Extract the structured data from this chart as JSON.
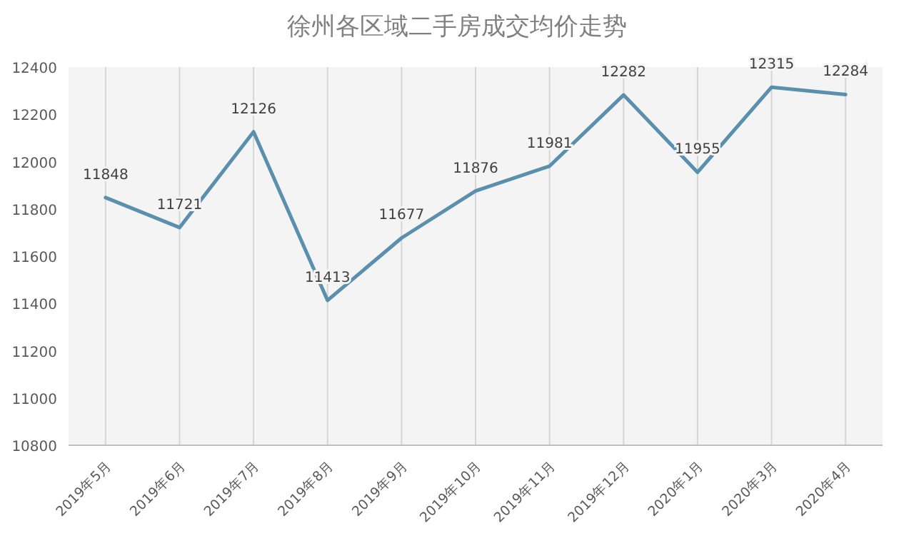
{
  "chart_data": {
    "type": "line",
    "title": "徐州各区域二手房成交均价走势",
    "categories": [
      "2019年5月",
      "2019年6月",
      "2019年7月",
      "2019年8月",
      "2019年9月",
      "2019年10月",
      "2019年11月",
      "2019年12月",
      "2020年1月",
      "2020年3月",
      "2020年4月"
    ],
    "series": [
      {
        "color": "#5b8fae",
        "values": [
          11848,
          11721,
          12126,
          11413,
          11677,
          11876,
          11981,
          12282,
          11955,
          12315,
          12284
        ]
      }
    ],
    "ylim": [
      10800,
      12400
    ],
    "yticks": [
      10800,
      11000,
      11200,
      11400,
      11600,
      11800,
      12000,
      12200,
      12400
    ],
    "grid": "x",
    "data_labels": true,
    "marker": "none",
    "line_style": "solid"
  }
}
